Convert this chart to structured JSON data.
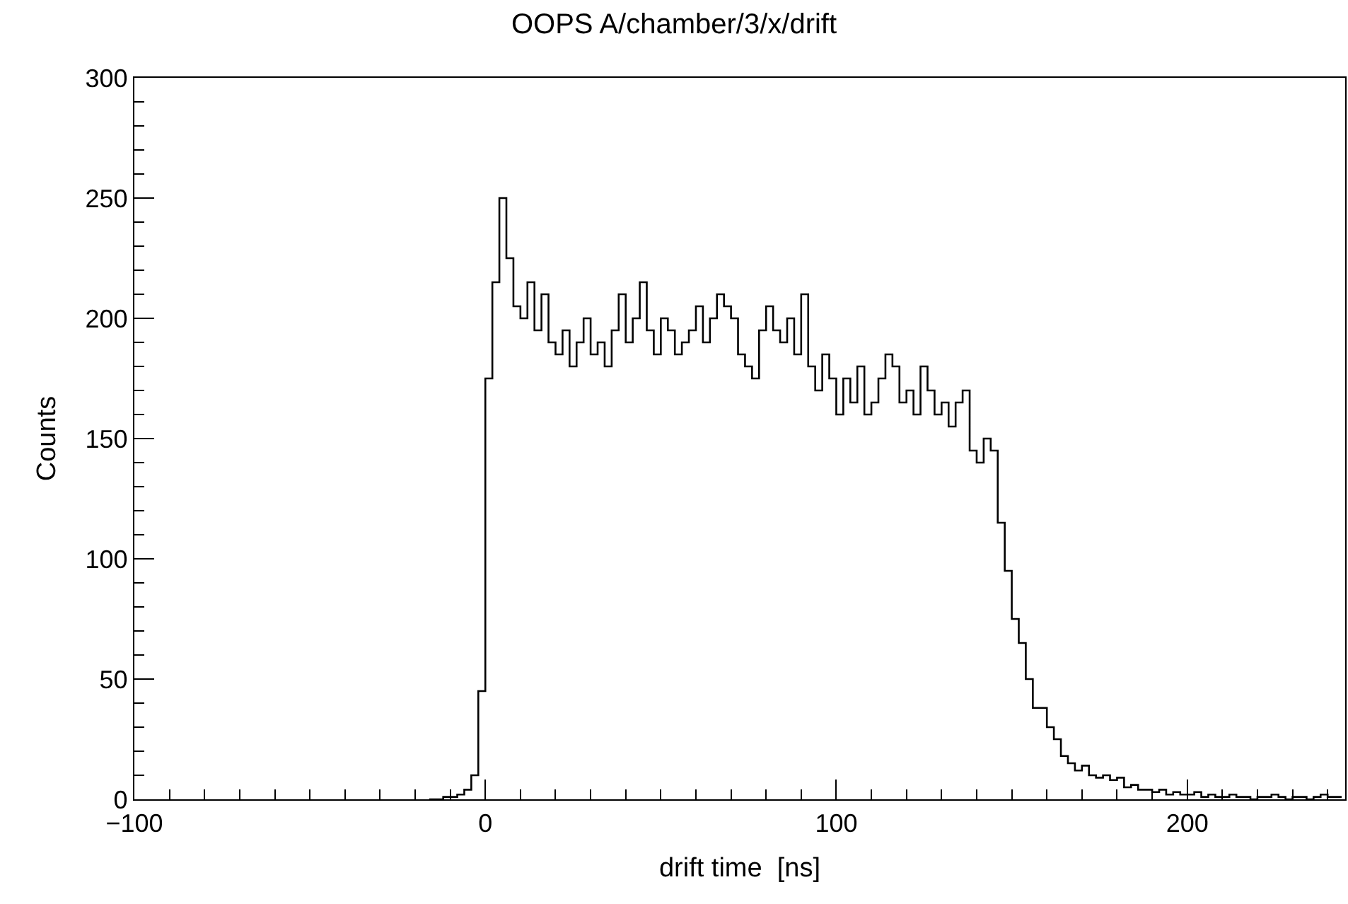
{
  "chart_data": {
    "type": "histogram",
    "title": "OOPS A/chamber/3/x/drift",
    "xlabel": "drift time  [ns]",
    "ylabel": "Counts",
    "bins": [
      -16,
      -14,
      -12,
      -10,
      -8,
      -6,
      -4,
      -2,
      0,
      2,
      4,
      6,
      8,
      10,
      12,
      14,
      16,
      18,
      20,
      22,
      24,
      26,
      28,
      30,
      32,
      34,
      36,
      38,
      40,
      42,
      44,
      46,
      48,
      50,
      52,
      54,
      56,
      58,
      60,
      62,
      64,
      66,
      68,
      70,
      72,
      74,
      76,
      78,
      80,
      82,
      84,
      86,
      88,
      90,
      92,
      94,
      96,
      98,
      100,
      102,
      104,
      106,
      108,
      110,
      112,
      114,
      116,
      118,
      120,
      122,
      124,
      126,
      128,
      130,
      132,
      134,
      136,
      138,
      140,
      142,
      144,
      146,
      148,
      150,
      152,
      154,
      156,
      158,
      160,
      162,
      164,
      166,
      168,
      170,
      172,
      174,
      176,
      178,
      180,
      182,
      184,
      186,
      188,
      190,
      192,
      194,
      196,
      198,
      200,
      202,
      204,
      206,
      208,
      210,
      212,
      214,
      216,
      218,
      220,
      222,
      224,
      226,
      228,
      230,
      232,
      234,
      236,
      238,
      240,
      242,
      244
    ],
    "values": [
      0,
      0,
      1,
      1,
      2,
      4,
      10,
      45,
      175,
      215,
      250,
      225,
      205,
      200,
      215,
      195,
      210,
      190,
      185,
      195,
      180,
      190,
      200,
      185,
      190,
      180,
      195,
      210,
      190,
      200,
      215,
      195,
      185,
      200,
      195,
      185,
      190,
      195,
      205,
      190,
      200,
      210,
      205,
      200,
      185,
      180,
      175,
      195,
      205,
      195,
      190,
      200,
      185,
      210,
      180,
      170,
      185,
      175,
      160,
      175,
      165,
      180,
      160,
      165,
      175,
      185,
      180,
      165,
      170,
      160,
      180,
      170,
      160,
      165,
      155,
      165,
      170,
      145,
      140,
      150,
      145,
      115,
      95,
      75,
      65,
      50,
      38,
      38,
      30,
      25,
      18,
      15,
      12,
      14,
      10,
      9,
      10,
      8,
      9,
      5,
      6,
      4,
      4,
      3,
      4,
      2,
      3,
      2,
      2,
      3,
      1,
      2,
      1,
      1,
      2,
      1,
      1,
      0,
      1,
      1,
      2,
      1,
      0,
      1,
      1,
      0,
      1,
      2,
      1,
      1
    ],
    "color": "#000000",
    "xlim": [
      -100,
      245
    ],
    "ylim": [
      0,
      300
    ],
    "xticks": [
      -100,
      {
        "value": -90,
        "label": null
      },
      {
        "value": -80,
        "label": null
      },
      {
        "value": -70,
        "label": null
      },
      {
        "value": -60,
        "label": null
      },
      {
        "value": -50,
        "label": null
      },
      {
        "value": -40,
        "label": null
      },
      {
        "value": -30,
        "label": null
      },
      {
        "value": -20,
        "label": null
      },
      {
        "value": -10,
        "label": null
      },
      0,
      {
        "value": 10,
        "label": null
      },
      {
        "value": 20,
        "label": null
      },
      {
        "value": 30,
        "label": null
      },
      {
        "value": 40,
        "label": null
      },
      {
        "value": 50,
        "label": null
      },
      {
        "value": 60,
        "label": null
      },
      {
        "value": 70,
        "label": null
      },
      {
        "value": 80,
        "label": null
      },
      {
        "value": 90,
        "label": null
      },
      100,
      {
        "value": 110,
        "label": null
      },
      {
        "value": 120,
        "label": null
      },
      {
        "value": 130,
        "label": null
      },
      {
        "value": 140,
        "label": null
      },
      {
        "value": 150,
        "label": null
      },
      {
        "value": 160,
        "label": null
      },
      {
        "value": 170,
        "label": null
      },
      {
        "value": 180,
        "label": null
      },
      {
        "value": 190,
        "label": null
      },
      200,
      {
        "value": 210,
        "label": null
      },
      {
        "value": 220,
        "label": null
      },
      {
        "value": 230,
        "label": null
      },
      {
        "value": 240,
        "label": null
      }
    ],
    "yticks": [
      0,
      {
        "value": 10,
        "label": null
      },
      {
        "value": 20,
        "label": null
      },
      {
        "value": 30,
        "label": null
      },
      {
        "value": 40,
        "label": null
      },
      50,
      {
        "value": 60,
        "label": null
      },
      {
        "value": 70,
        "label": null
      },
      {
        "value": 80,
        "label": null
      },
      {
        "value": 90,
        "label": null
      },
      100,
      {
        "value": 110,
        "label": null
      },
      {
        "value": 120,
        "label": null
      },
      {
        "value": 130,
        "label": null
      },
      {
        "value": 140,
        "label": null
      },
      150,
      {
        "value": 160,
        "label": null
      },
      {
        "value": 170,
        "label": null
      },
      {
        "value": 180,
        "label": null
      },
      {
        "value": 190,
        "label": null
      },
      200,
      {
        "value": 210,
        "label": null
      },
      {
        "value": 220,
        "label": null
      },
      {
        "value": 230,
        "label": null
      },
      {
        "value": 240,
        "label": null
      },
      250,
      {
        "value": 260,
        "label": null
      },
      {
        "value": 270,
        "label": null
      },
      {
        "value": 280,
        "label": null
      },
      {
        "value": 290,
        "label": null
      },
      300
    ],
    "line_style": "solid"
  }
}
